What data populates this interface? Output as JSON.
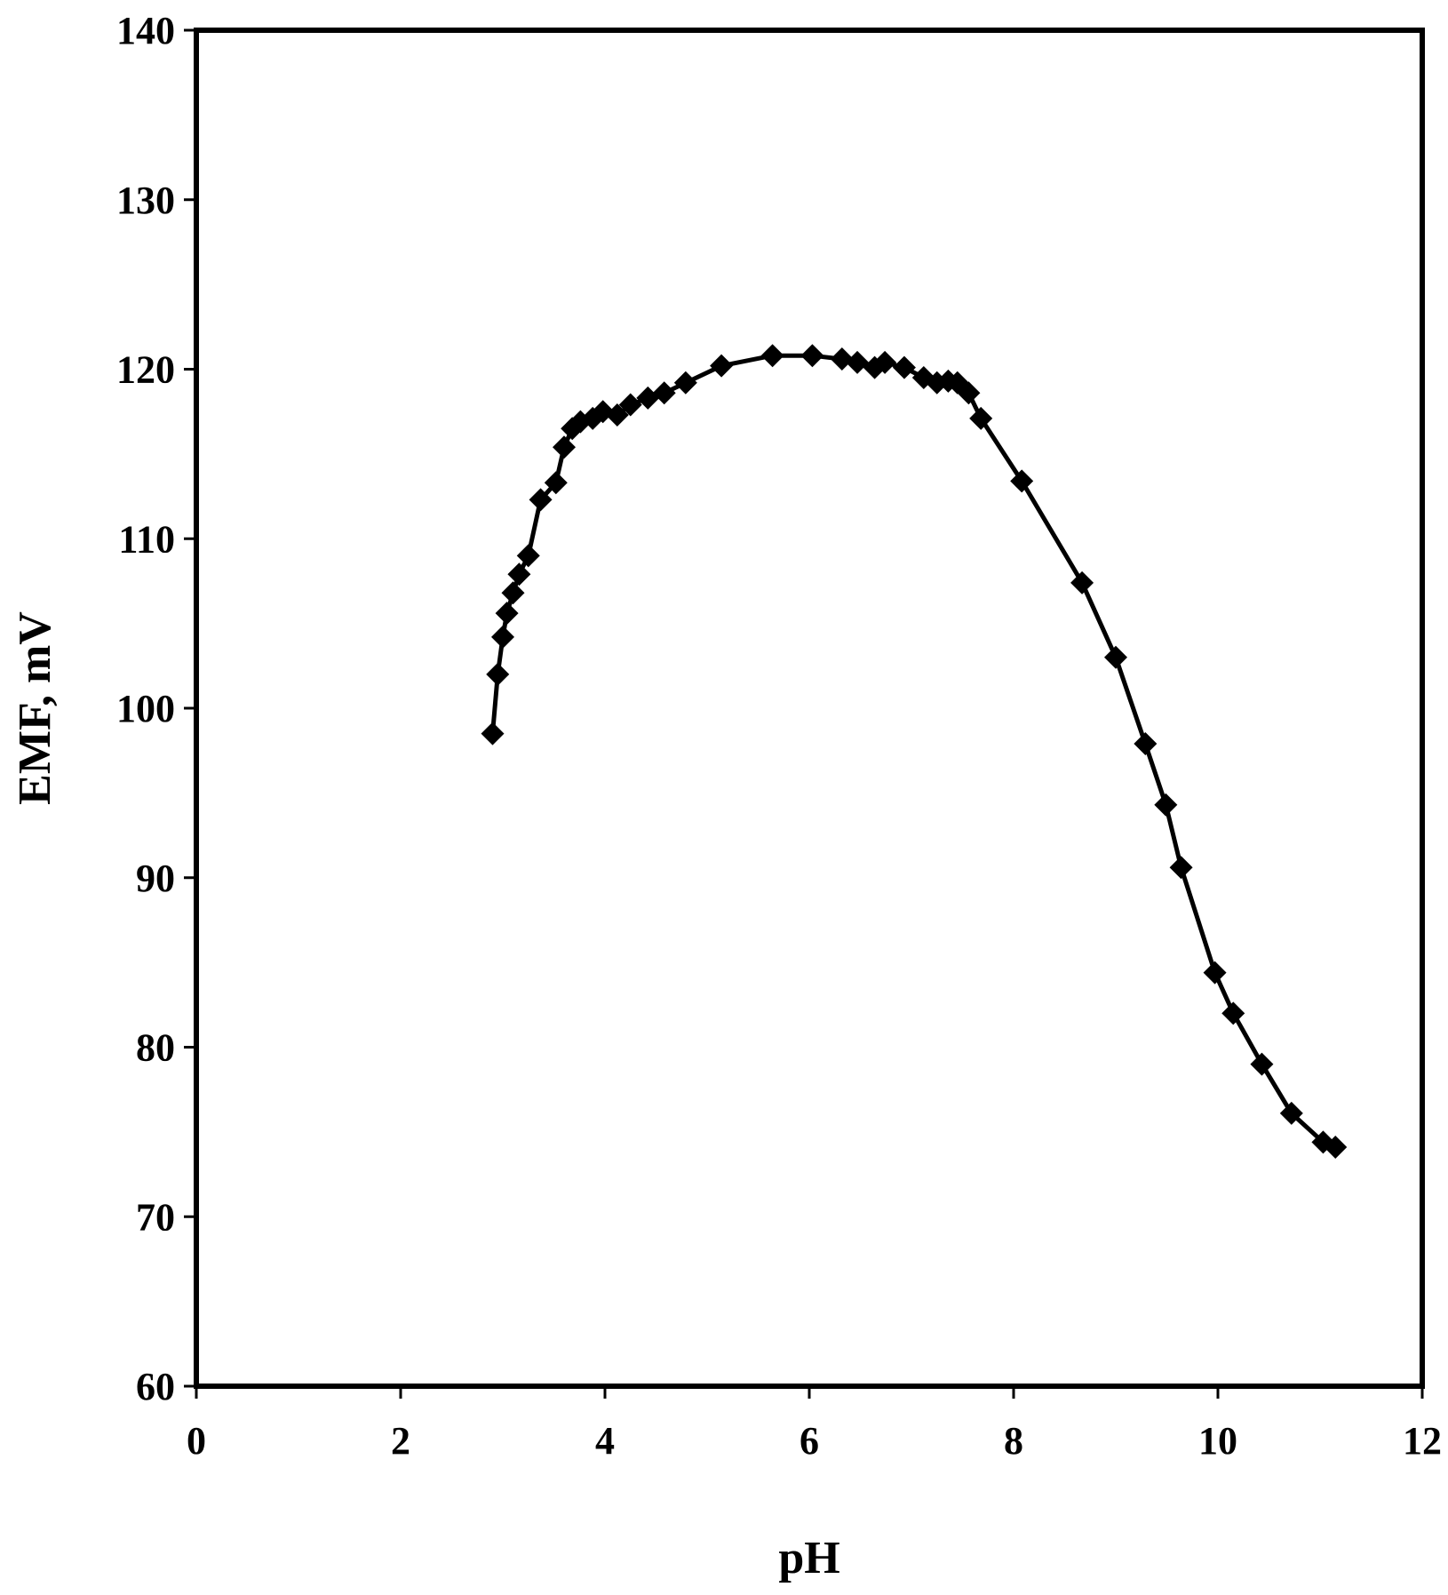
{
  "chart_data": {
    "type": "line",
    "title": "",
    "xlabel": "pH",
    "ylabel": "EMF, mV",
    "xlim": [
      0,
      12
    ],
    "ylim": [
      60,
      140
    ],
    "xticks": [
      0,
      2,
      4,
      6,
      8,
      10,
      12
    ],
    "yticks": [
      60,
      70,
      80,
      90,
      100,
      110,
      120,
      130,
      140
    ],
    "grid": false,
    "legend": "none",
    "marker": "diamond",
    "colors": {
      "line": "#000000",
      "marker": "#000000",
      "frame": "#000000",
      "background": "#ffffff"
    },
    "series": [
      {
        "x": [
          2.9,
          2.95,
          3.0,
          3.04,
          3.1,
          3.16,
          3.25,
          3.37,
          3.52,
          3.6,
          3.68,
          3.76,
          3.88,
          3.98,
          4.12,
          4.25,
          4.42,
          4.58,
          4.79,
          5.14,
          5.64,
          6.03,
          6.32,
          6.47,
          6.64,
          6.74,
          6.93,
          7.12,
          7.25,
          7.36,
          7.45,
          7.56,
          7.68,
          8.08,
          8.67,
          9.0,
          9.29,
          9.49,
          9.64,
          9.97,
          10.15,
          10.43,
          10.72,
          11.03,
          11.15
        ],
        "y": [
          98.5,
          102.0,
          104.2,
          105.6,
          106.8,
          107.9,
          109.0,
          112.3,
          113.3,
          115.4,
          116.5,
          116.9,
          117.1,
          117.5,
          117.3,
          117.9,
          118.3,
          118.6,
          119.2,
          120.2,
          120.8,
          120.8,
          120.6,
          120.4,
          120.1,
          120.4,
          120.1,
          119.5,
          119.2,
          119.3,
          119.2,
          118.6,
          117.1,
          113.4,
          107.4,
          103.0,
          97.9,
          94.3,
          90.6,
          84.4,
          82.0,
          79.0,
          76.1,
          74.4,
          74.1
        ]
      }
    ]
  }
}
